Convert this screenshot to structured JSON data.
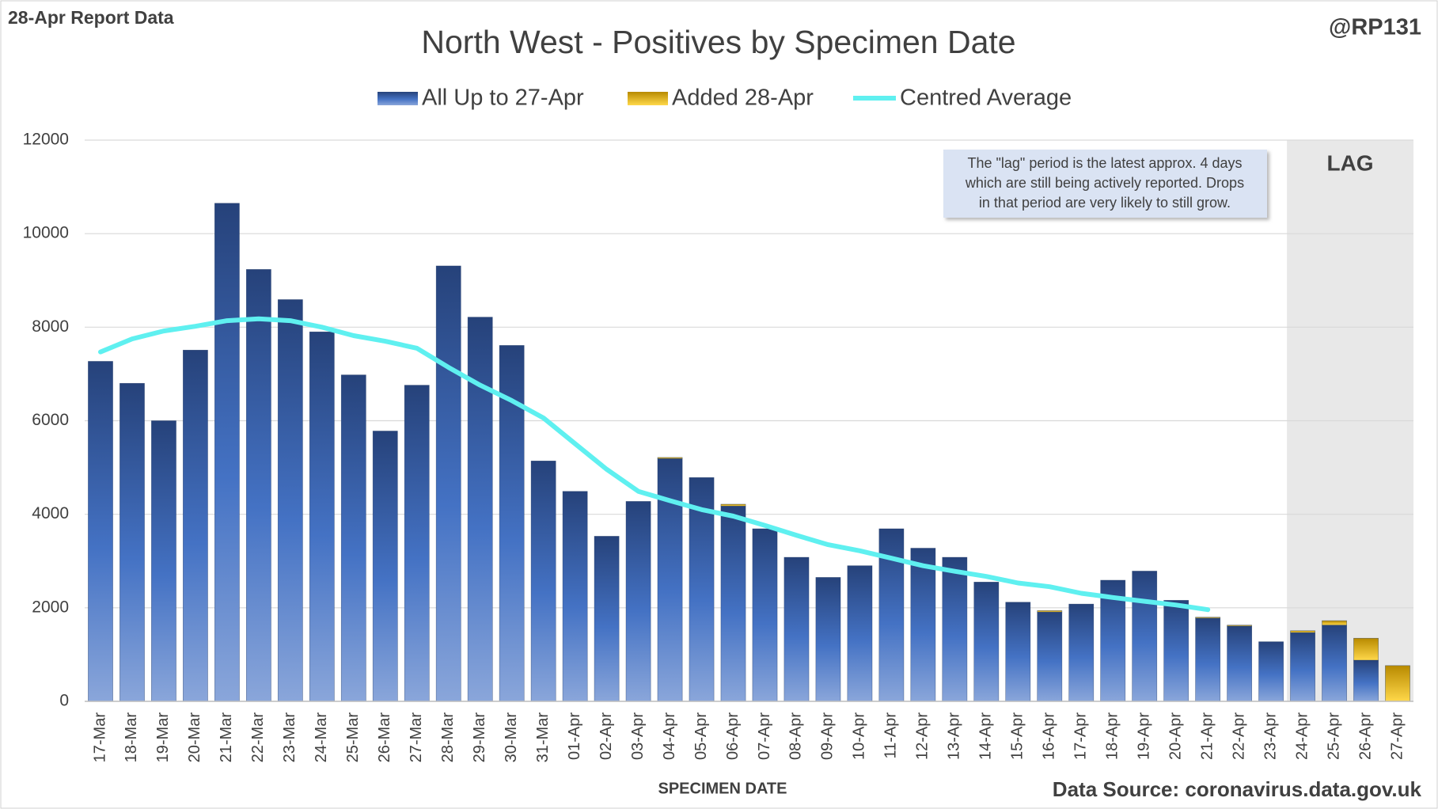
{
  "header": "28-Apr Report Data",
  "handle": "@RP131",
  "source": "Data Source: coronavirus.data.gov.uk",
  "chart_data": {
    "type": "bar",
    "stacked": true,
    "title": "North West - Positives by Specimen Date",
    "x_label": "SPECIMEN DATE",
    "categories": [
      "17-Mar",
      "18-Mar",
      "19-Mar",
      "20-Mar",
      "21-Mar",
      "22-Mar",
      "23-Mar",
      "24-Mar",
      "25-Mar",
      "26-Mar",
      "27-Mar",
      "28-Mar",
      "29-Mar",
      "30-Mar",
      "31-Mar",
      "01-Apr",
      "02-Apr",
      "03-Apr",
      "04-Apr",
      "05-Apr",
      "06-Apr",
      "07-Apr",
      "08-Apr",
      "09-Apr",
      "10-Apr",
      "11-Apr",
      "12-Apr",
      "13-Apr",
      "14-Apr",
      "15-Apr",
      "16-Apr",
      "17-Apr",
      "18-Apr",
      "19-Apr",
      "20-Apr",
      "21-Apr",
      "22-Apr",
      "23-Apr",
      "24-Apr",
      "25-Apr",
      "26-Apr",
      "27-Apr"
    ],
    "series": [
      {
        "name": "All Up to 27-Apr",
        "type": "bar",
        "color": "#4472c4",
        "values": [
          7270,
          6800,
          6000,
          7510,
          10650,
          9235,
          8590,
          7900,
          6980,
          5780,
          6760,
          9310,
          8215,
          7610,
          5140,
          4490,
          3530,
          4275,
          5190,
          4785,
          4175,
          3690,
          3080,
          2650,
          2900,
          3690,
          3275,
          3080,
          2550,
          2120,
          1910,
          2080,
          2590,
          2785,
          2160,
          1780,
          1610,
          1275,
          1470,
          1630,
          880,
          0
        ]
      },
      {
        "name": "Added 28-Apr",
        "type": "bar",
        "color": "#e6b000",
        "values": [
          0,
          0,
          0,
          0,
          0,
          0,
          0,
          0,
          0,
          0,
          0,
          0,
          0,
          0,
          0,
          0,
          0,
          0,
          25,
          0,
          40,
          0,
          0,
          0,
          0,
          0,
          0,
          0,
          0,
          0,
          30,
          0,
          0,
          0,
          0,
          20,
          20,
          0,
          40,
          95,
          470,
          765
        ]
      },
      {
        "name": "Centred Average",
        "type": "line",
        "color": "#5ff0f0",
        "values": [
          7470,
          7750,
          7920,
          8020,
          8140,
          8180,
          8140,
          8000,
          7820,
          7700,
          7550,
          7140,
          6760,
          6430,
          6060,
          5510,
          4960,
          4490,
          4290,
          4100,
          3960,
          3760,
          3550,
          3350,
          3220,
          3060,
          2900,
          2780,
          2670,
          2530,
          2450,
          2310,
          2220,
          2140,
          2060,
          1960,
          null,
          null,
          null,
          null,
          null,
          null
        ]
      }
    ],
    "ylim": [
      0,
      12000
    ],
    "yticks": [
      0,
      2000,
      4000,
      6000,
      8000,
      10000,
      12000
    ],
    "grid": true,
    "lag_label": "LAG",
    "lag_from": "24-Apr",
    "annotation": [
      "The \"lag\" period is the latest approx. 4 days",
      "which are still being actively reported.  Drops",
      "in that period are very likely to still grow."
    ]
  }
}
